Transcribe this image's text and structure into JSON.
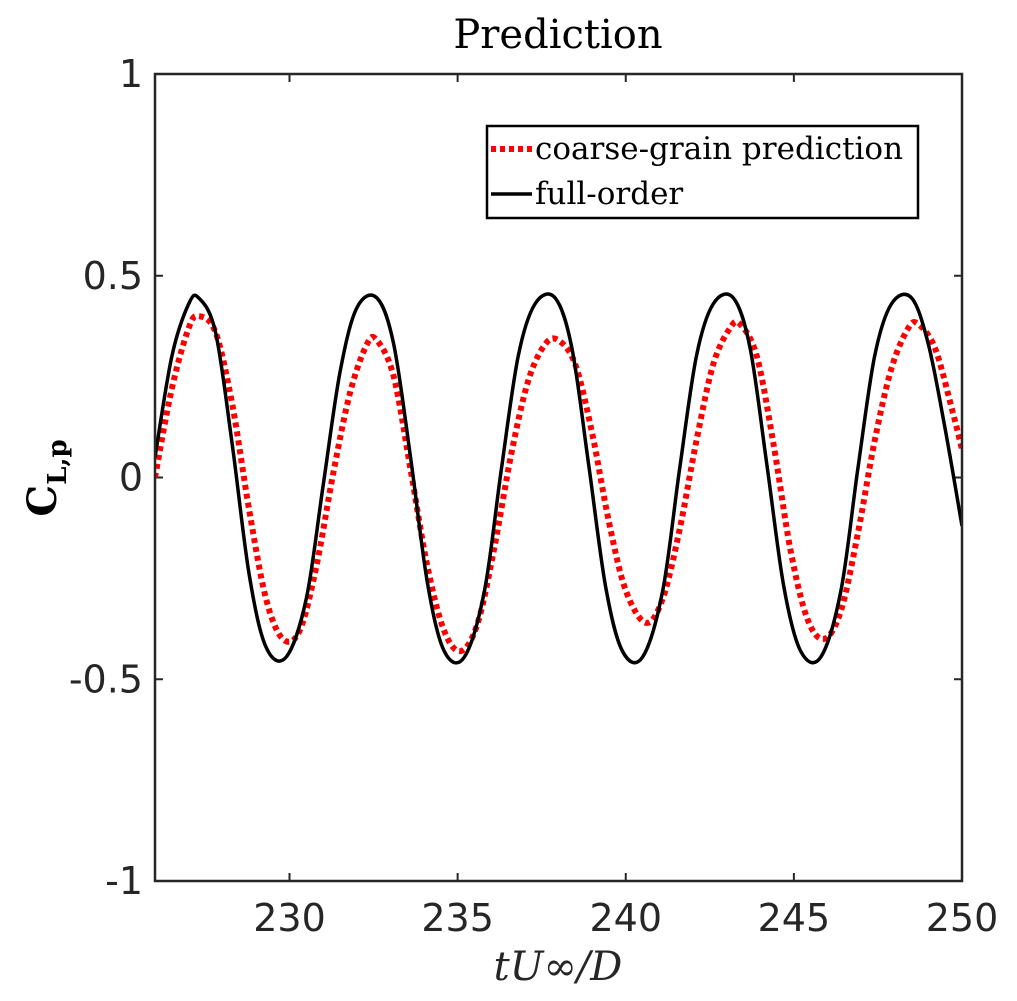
{
  "chart_data": {
    "type": "line",
    "title": "Prediction",
    "xlabel": "tU∞/D",
    "ylabel": {
      "main": "C",
      "subscript": "L,p"
    },
    "xlim": [
      226,
      250
    ],
    "ylim": [
      -1,
      1
    ],
    "xticks": [
      230,
      235,
      240,
      245,
      250
    ],
    "xtick_labels": [
      "230",
      "235",
      "240",
      "245",
      "250"
    ],
    "yticks": [
      -1,
      -0.5,
      0,
      0.5,
      1
    ],
    "ytick_labels": [
      "-1",
      "-0.5",
      "0",
      "0.5",
      "1"
    ],
    "grid": false,
    "legend": {
      "placement": "top-right"
    },
    "series": [
      {
        "name": "coarse-grain prediction",
        "color": "#ff0000",
        "style": "dotted",
        "x": [
          226.0,
          226.5,
          227.0,
          227.3,
          227.8,
          228.3,
          228.8,
          229.3,
          229.8,
          230.3,
          230.8,
          231.3,
          231.8,
          232.3,
          232.6,
          233.1,
          233.6,
          234.1,
          234.6,
          235.1,
          235.6,
          236.1,
          236.6,
          237.1,
          237.6,
          238.0,
          238.5,
          239.0,
          239.5,
          240.0,
          240.6,
          241.1,
          241.6,
          242.1,
          242.6,
          243.1,
          243.4,
          243.9,
          244.4,
          244.9,
          245.4,
          245.9,
          246.4,
          246.9,
          247.4,
          247.9,
          248.4,
          248.7,
          249.2,
          249.7,
          250.0
        ],
        "y": [
          0.0,
          0.22,
          0.37,
          0.4,
          0.36,
          0.18,
          -0.08,
          -0.3,
          -0.4,
          -0.38,
          -0.22,
          0.01,
          0.21,
          0.33,
          0.34,
          0.25,
          0.02,
          -0.22,
          -0.38,
          -0.43,
          -0.36,
          -0.17,
          0.06,
          0.24,
          0.33,
          0.34,
          0.28,
          0.11,
          -0.11,
          -0.28,
          -0.36,
          -0.3,
          -0.13,
          0.09,
          0.28,
          0.37,
          0.38,
          0.3,
          0.08,
          -0.18,
          -0.35,
          -0.4,
          -0.33,
          -0.14,
          0.09,
          0.27,
          0.37,
          0.38,
          0.32,
          0.17,
          0.07
        ]
      },
      {
        "name": "full-order",
        "color": "#000000",
        "style": "solid",
        "x": [
          226.0,
          226.5,
          227.0,
          227.3,
          227.8,
          228.3,
          228.8,
          229.3,
          229.9,
          230.5,
          231.0,
          231.5,
          232.0,
          232.6,
          233.1,
          233.6,
          234.1,
          234.6,
          235.2,
          235.8,
          236.3,
          236.8,
          237.3,
          237.9,
          238.4,
          238.9,
          239.4,
          239.9,
          240.5,
          241.1,
          241.6,
          242.1,
          242.6,
          243.2,
          243.7,
          244.2,
          244.7,
          245.2,
          245.8,
          246.4,
          246.9,
          247.4,
          247.9,
          248.5,
          249.0,
          249.5,
          250.0
        ],
        "y": [
          0.05,
          0.3,
          0.43,
          0.445,
          0.36,
          0.08,
          -0.24,
          -0.42,
          -0.445,
          -0.3,
          -0.02,
          0.26,
          0.42,
          0.445,
          0.33,
          0.05,
          -0.26,
          -0.43,
          -0.445,
          -0.28,
          0.02,
          0.3,
          0.43,
          0.445,
          0.32,
          0.03,
          -0.27,
          -0.43,
          -0.445,
          -0.28,
          0.02,
          0.3,
          0.43,
          0.445,
          0.32,
          0.03,
          -0.27,
          -0.43,
          -0.445,
          -0.28,
          0.02,
          0.3,
          0.43,
          0.445,
          0.33,
          0.12,
          -0.12
        ]
      }
    ]
  }
}
